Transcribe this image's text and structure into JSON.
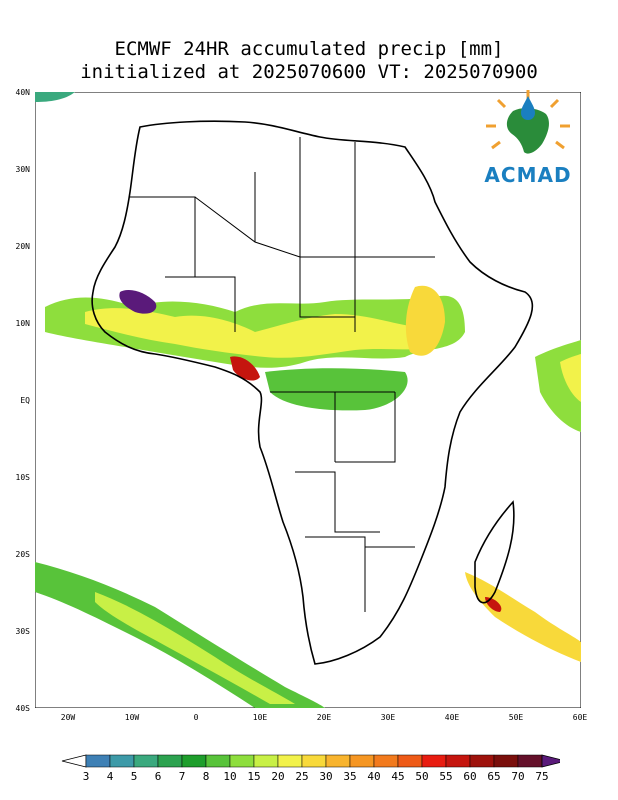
{
  "title": {
    "line1": "ECMWF 24HR accumulated precip [mm]",
    "line2": "initialized at 2025070600 VT: 2025070900"
  },
  "map": {
    "lat_labels": [
      "40N",
      "30N",
      "20N",
      "10N",
      "EQ",
      "10S",
      "20S",
      "30S",
      "40S"
    ],
    "lon_labels": [
      "20W",
      "10W",
      "0",
      "10E",
      "20E",
      "30E",
      "40E",
      "50E",
      "60E"
    ],
    "extent": {
      "lon_min": -25,
      "lon_max": 60,
      "lat_min": -40,
      "lat_max": 40
    }
  },
  "logo": {
    "text": "ACMAD"
  },
  "colorbar": {
    "levels": [
      "3",
      "4",
      "5",
      "6",
      "7",
      "8",
      "10",
      "15",
      "20",
      "25",
      "30",
      "35",
      "40",
      "45",
      "50",
      "55",
      "60",
      "65",
      "70",
      "75"
    ],
    "colors": [
      "#ffffff",
      "#3e80b5",
      "#3d9aa8",
      "#3aa97e",
      "#2ca24f",
      "#1e9e2c",
      "#58c33a",
      "#8ede3d",
      "#c8f046",
      "#f2f24a",
      "#f8d93a",
      "#f8b42e",
      "#f59623",
      "#f27a1d",
      "#ee5a17",
      "#e81c10",
      "#c5150e",
      "#9e120c",
      "#7a0f0c",
      "#64102a",
      "#5a1a7a"
    ]
  },
  "legend_units": ""
}
